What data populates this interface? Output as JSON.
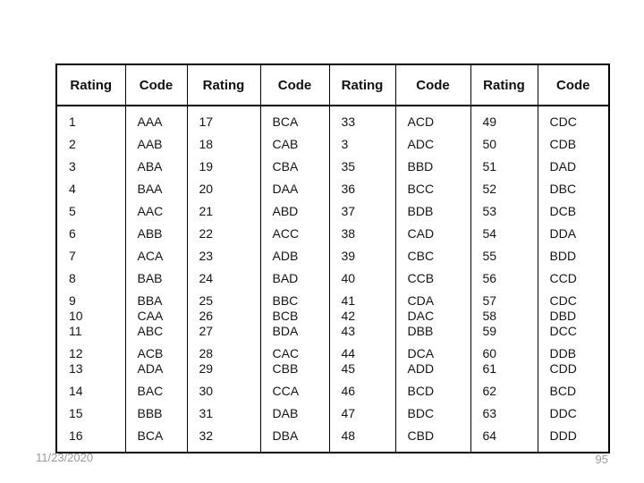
{
  "slide": {
    "footer": {
      "date": "11/23/2020",
      "page_number": "95"
    },
    "table": {
      "headers": [
        "Rating",
        "Code",
        "Rating",
        "Code",
        "Rating",
        "Code",
        "Rating",
        "Code"
      ],
      "rows": [
        [
          "1",
          "AAA",
          "17",
          "BCA",
          "33",
          "ACD",
          "49",
          "CDC"
        ],
        [
          "2",
          "AAB",
          "18",
          "CAB",
          "3",
          "ADC",
          "50",
          "CDB"
        ],
        [
          "3",
          "ABA",
          "19",
          "CBA",
          "35",
          "BBD",
          "51",
          "DAD"
        ],
        [
          "4",
          "BAA",
          "20",
          "DAA",
          "36",
          "BCC",
          "52",
          "DBC"
        ],
        [
          "5",
          "AAC",
          "21",
          "ABD",
          "37",
          "BDB",
          "53",
          "DCB"
        ],
        [
          "6",
          "ABB",
          "22",
          "ACC",
          "38",
          "CAD",
          "54",
          "DDA"
        ],
        [
          "7",
          "ACA",
          "23",
          "ADB",
          "39",
          "CBC",
          "55",
          "BDD"
        ],
        [
          "8",
          "BAB",
          "24",
          "BAD",
          "40",
          "CCB",
          "56",
          "CCD"
        ],
        [
          [
            "9",
            "10",
            "11"
          ],
          [
            "BBA",
            "CAA",
            "ABC"
          ],
          [
            "25",
            "26",
            "27"
          ],
          [
            "BBC",
            "BCB",
            "BDA"
          ],
          [
            "41",
            "42",
            "43"
          ],
          [
            "CDA",
            "DAC",
            "DBB"
          ],
          [
            "57",
            "58",
            "59"
          ],
          [
            "CDC",
            "DBD",
            "DCC"
          ]
        ],
        [
          [
            "12",
            "13"
          ],
          [
            "ACB",
            "ADA"
          ],
          [
            "28",
            "29"
          ],
          [
            "CAC",
            "CBB"
          ],
          [
            "44",
            "45"
          ],
          [
            "DCA",
            "ADD"
          ],
          [
            "60",
            "61"
          ],
          [
            "DDB",
            "CDD"
          ]
        ],
        [
          "14",
          "BAC",
          "30",
          "CCA",
          "46",
          "BCD",
          "62",
          "BCD"
        ],
        [
          "15",
          "BBB",
          "31",
          "DAB",
          "47",
          "BDC",
          "63",
          "DDC"
        ],
        [
          "16",
          "BCA",
          "32",
          "DBA",
          "48",
          "CBD",
          "64",
          "DDD"
        ]
      ]
    },
    "colors": {
      "background": "#ffffff",
      "border": "#000000",
      "body_text": "#141414",
      "footer_text": "#9a9a9a"
    }
  }
}
